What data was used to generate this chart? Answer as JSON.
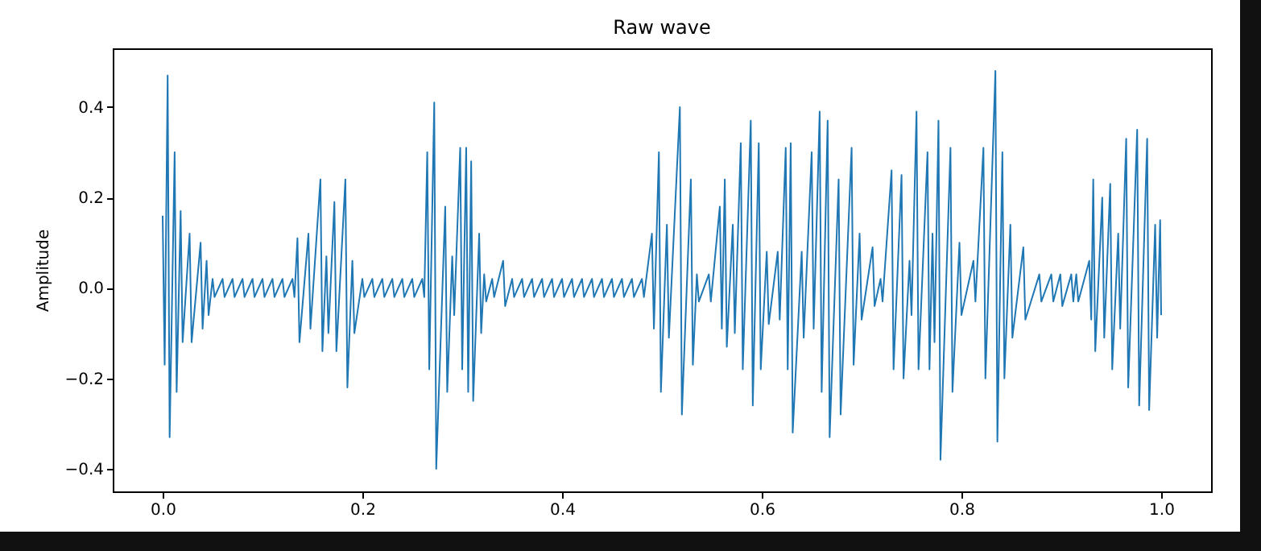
{
  "chart_data": {
    "type": "line",
    "title": "Raw wave",
    "ylabel": "Amplitude",
    "color": "#1f77b4",
    "line_style": "solid",
    "grid": false,
    "xlim": [
      -0.05,
      1.05
    ],
    "ylim": [
      -0.45,
      0.53
    ],
    "xticks": [
      {
        "value": 0,
        "label": "0.0"
      },
      0.2,
      0.4,
      0.6,
      0.8,
      {
        "value": 1,
        "label": "1.0"
      }
    ],
    "yticks": [
      {
        "value": -0.4,
        "label": "−0.4"
      },
      {
        "value": -0.2,
        "label": "−0.2"
      },
      {
        "value": 0,
        "label": "0.0"
      },
      0.2,
      0.4
    ],
    "x": [
      0,
      0.002,
      0.005,
      0.007,
      0.012,
      0.014,
      0.018,
      0.02,
      0.027,
      0.029,
      0.038,
      0.04,
      0.044,
      0.046,
      0.05,
      0.052,
      0.06,
      0.062,
      0.07,
      0.072,
      0.08,
      0.082,
      0.09,
      0.092,
      0.1,
      0.102,
      0.11,
      0.112,
      0.12,
      0.122,
      0.13,
      0.132,
      0.135,
      0.137,
      0.146,
      0.148,
      0.158,
      0.16,
      0.164,
      0.166,
      0.172,
      0.174,
      0.183,
      0.185,
      0.19,
      0.192,
      0.2,
      0.202,
      0.21,
      0.212,
      0.22,
      0.222,
      0.23,
      0.232,
      0.24,
      0.242,
      0.25,
      0.252,
      0.26,
      0.262,
      0.265,
      0.267,
      0.272,
      0.274,
      0.283,
      0.285,
      0.29,
      0.292,
      0.298,
      0.3,
      0.304,
      0.306,
      0.309,
      0.311,
      0.317,
      0.319,
      0.322,
      0.324,
      0.33,
      0.332,
      0.341,
      0.343,
      0.35,
      0.352,
      0.36,
      0.362,
      0.37,
      0.372,
      0.38,
      0.382,
      0.39,
      0.392,
      0.4,
      0.402,
      0.41,
      0.412,
      0.42,
      0.422,
      0.43,
      0.432,
      0.44,
      0.442,
      0.45,
      0.452,
      0.46,
      0.462,
      0.47,
      0.472,
      0.48,
      0.482,
      0.49,
      0.492,
      0.497,
      0.499,
      0.505,
      0.507,
      0.518,
      0.52,
      0.529,
      0.531,
      0.535,
      0.537,
      0.547,
      0.549,
      0.558,
      0.56,
      0.563,
      0.565,
      0.571,
      0.573,
      0.579,
      0.581,
      0.589,
      0.591,
      0.597,
      0.599,
      0.605,
      0.607,
      0.616,
      0.618,
      0.624,
      0.626,
      0.629,
      0.631,
      0.64,
      0.642,
      0.65,
      0.652,
      0.658,
      0.66,
      0.666,
      0.668,
      0.677,
      0.679,
      0.69,
      0.692,
      0.698,
      0.7,
      0.711,
      0.713,
      0.719,
      0.721,
      0.73,
      0.732,
      0.74,
      0.742,
      0.748,
      0.75,
      0.755,
      0.757,
      0.766,
      0.768,
      0.771,
      0.773,
      0.777,
      0.779,
      0.789,
      0.791,
      0.798,
      0.8,
      0.812,
      0.814,
      0.822,
      0.824,
      0.834,
      0.836,
      0.841,
      0.843,
      0.849,
      0.851,
      0.862,
      0.864,
      0.878,
      0.88,
      0.89,
      0.892,
      0.899,
      0.901,
      0.91,
      0.912,
      0.915,
      0.917,
      0.928,
      0.93,
      0.932,
      0.934,
      0.941,
      0.943,
      0.949,
      0.951,
      0.957,
      0.959,
      0.965,
      0.967,
      0.976,
      0.978,
      0.986,
      0.988,
      0.994,
      0.996,
      0.999,
      1.0
    ],
    "values": [
      0.16,
      -0.17,
      0.47,
      -0.33,
      0.3,
      -0.23,
      0.17,
      -0.12,
      0.12,
      -0.12,
      0.1,
      -0.09,
      0.06,
      -0.06,
      0.02,
      -0.02,
      0.02,
      -0.02,
      0.02,
      -0.02,
      0.02,
      -0.02,
      0.02,
      -0.02,
      0.02,
      -0.02,
      0.02,
      -0.02,
      0.02,
      -0.02,
      0.02,
      -0.02,
      0.11,
      -0.12,
      0.12,
      -0.09,
      0.24,
      -0.14,
      0.07,
      -0.1,
      0.19,
      -0.14,
      0.24,
      -0.22,
      0.06,
      -0.1,
      0.02,
      -0.02,
      0.02,
      -0.02,
      0.02,
      -0.02,
      0.02,
      -0.02,
      0.02,
      -0.02,
      0.02,
      -0.02,
      0.02,
      -0.02,
      0.3,
      -0.18,
      0.41,
      -0.4,
      0.18,
      -0.23,
      0.07,
      -0.06,
      0.31,
      -0.18,
      0.31,
      -0.23,
      0.28,
      -0.25,
      0.12,
      -0.1,
      0.03,
      -0.03,
      0.02,
      -0.02,
      0.06,
      -0.04,
      0.02,
      -0.02,
      0.02,
      -0.02,
      0.02,
      -0.02,
      0.02,
      -0.02,
      0.02,
      -0.02,
      0.02,
      -0.02,
      0.02,
      -0.02,
      0.02,
      -0.02,
      0.02,
      -0.02,
      0.02,
      -0.02,
      0.02,
      -0.02,
      0.02,
      -0.02,
      0.02,
      -0.02,
      0.02,
      -0.02,
      0.12,
      -0.09,
      0.3,
      -0.23,
      0.14,
      -0.11,
      0.4,
      -0.28,
      0.24,
      -0.17,
      0.03,
      -0.03,
      0.03,
      -0.03,
      0.18,
      -0.09,
      0.24,
      -0.13,
      0.14,
      -0.1,
      0.32,
      -0.18,
      0.37,
      -0.26,
      0.32,
      -0.18,
      0.08,
      -0.08,
      0.08,
      -0.07,
      0.31,
      -0.18,
      0.32,
      -0.32,
      0.08,
      -0.11,
      0.3,
      -0.09,
      0.39,
      -0.23,
      0.37,
      -0.33,
      0.24,
      -0.28,
      0.31,
      -0.17,
      0.12,
      -0.07,
      0.09,
      -0.04,
      0.02,
      -0.03,
      0.26,
      -0.18,
      0.25,
      -0.2,
      0.06,
      -0.06,
      0.39,
      -0.18,
      0.3,
      -0.18,
      0.12,
      -0.12,
      0.37,
      -0.38,
      0.31,
      -0.23,
      0.1,
      -0.06,
      0.06,
      -0.03,
      0.31,
      -0.2,
      0.48,
      -0.34,
      0.3,
      -0.2,
      0.14,
      -0.11,
      0.09,
      -0.07,
      0.03,
      -0.03,
      0.03,
      -0.03,
      0.03,
      -0.04,
      0.03,
      -0.03,
      0.03,
      -0.03,
      0.06,
      -0.07,
      0.24,
      -0.14,
      0.2,
      -0.11,
      0.23,
      -0.18,
      0.12,
      -0.09,
      0.33,
      -0.22,
      0.35,
      -0.26,
      0.33,
      -0.27,
      0.14,
      -0.11,
      0.15,
      -0.06
    ]
  }
}
